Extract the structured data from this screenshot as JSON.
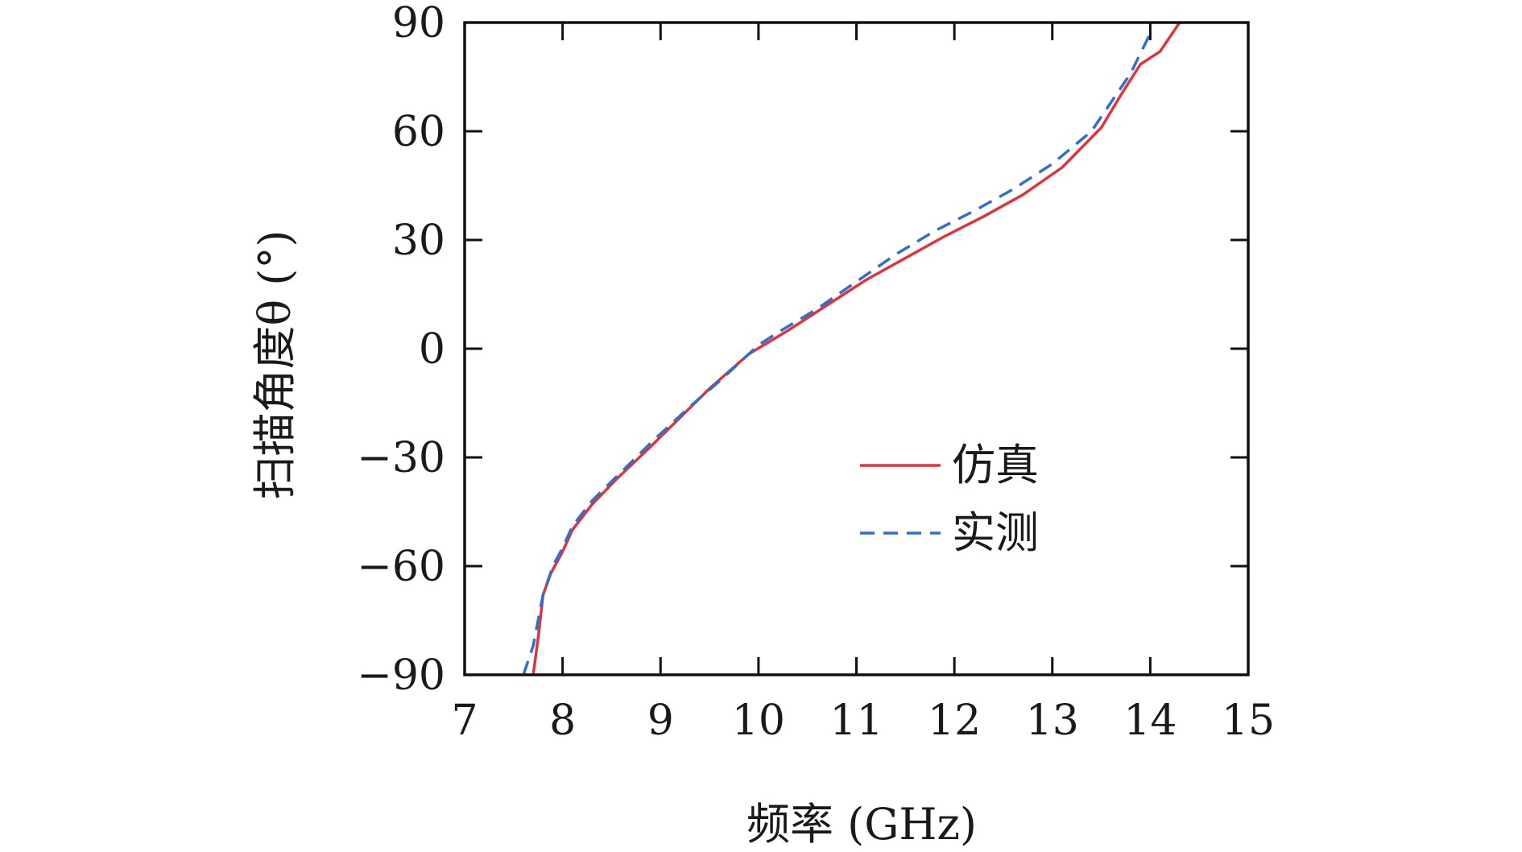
{
  "chart_data": {
    "type": "line",
    "xlabel": "频率 (GHz)",
    "ylabel": "扫描角度θ (°)",
    "xlim": [
      7,
      15
    ],
    "ylim": [
      -90,
      90
    ],
    "xticks": [
      "7",
      "8",
      "9",
      "10",
      "11",
      "12",
      "13",
      "14",
      "15"
    ],
    "yticks": [
      "−90",
      "−60",
      "−30",
      "0",
      "30",
      "60",
      "90"
    ],
    "xtick_values": [
      7,
      8,
      9,
      10,
      11,
      12,
      13,
      14,
      15
    ],
    "ytick_values": [
      -90,
      -60,
      -30,
      0,
      30,
      60,
      90
    ],
    "legend_position": "center-right",
    "grid": false,
    "series": [
      {
        "name": "仿真",
        "color": "#e0343a",
        "style": "solid",
        "x": [
          7.7,
          7.75,
          7.8,
          7.88,
          8.0,
          8.1,
          8.3,
          8.55,
          8.9,
          9.2,
          9.5,
          9.9,
          10.3,
          10.7,
          11.1,
          11.5,
          11.9,
          12.3,
          12.7,
          13.1,
          13.5,
          13.7,
          13.9,
          14.1,
          14.3
        ],
        "y": [
          -90,
          -80,
          -68,
          -62,
          -56,
          -50,
          -43,
          -36,
          -27,
          -19,
          -11,
          -1.5,
          5,
          12,
          19,
          25,
          31,
          36.5,
          42.5,
          50,
          61,
          70,
          78.5,
          82,
          90
        ]
      },
      {
        "name": "实测",
        "color": "#2f6fd0",
        "style": "dashed",
        "x": [
          7.6,
          7.7,
          7.8,
          7.9,
          8.0,
          8.1,
          8.3,
          8.6,
          8.9,
          9.3,
          9.6,
          10.0,
          10.2,
          10.6,
          11.0,
          11.4,
          11.8,
          12.2,
          12.6,
          13.0,
          13.4,
          13.6,
          13.8,
          14.0
        ],
        "y": [
          -90,
          -82,
          -68,
          -60,
          -55,
          -49,
          -42,
          -34,
          -26,
          -16,
          -9,
          1,
          4.5,
          11,
          18.5,
          26,
          32.5,
          38,
          44,
          51,
          60,
          68,
          76,
          87
        ]
      }
    ]
  }
}
